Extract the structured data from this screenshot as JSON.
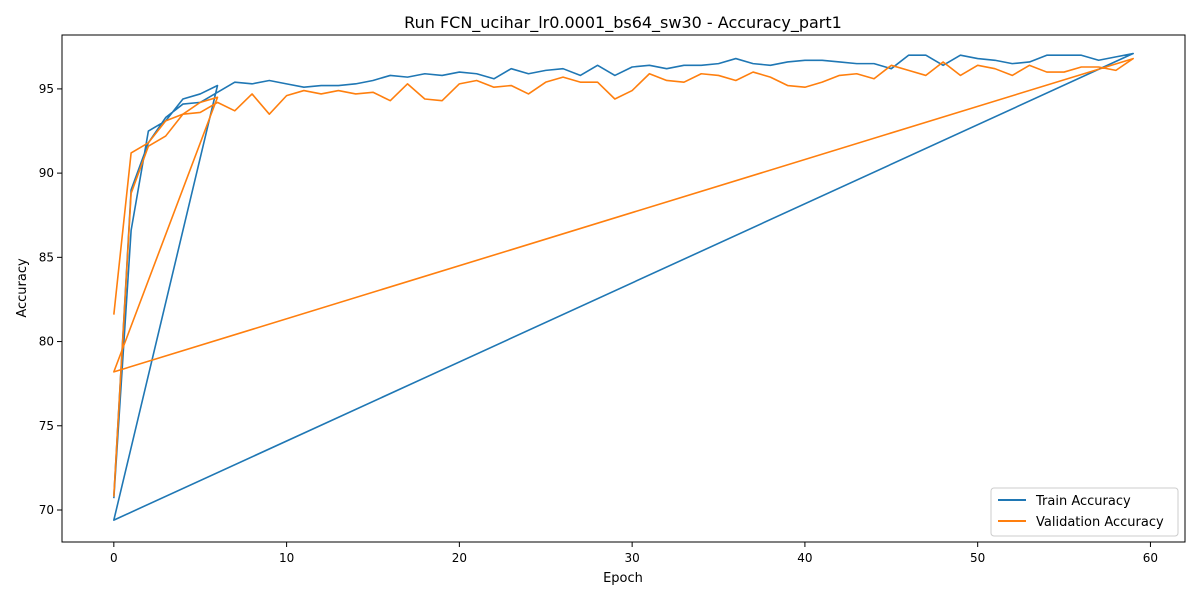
{
  "chart_data": {
    "type": "line",
    "title": "Run FCN_ucihar_lr0.0001_bs64_sw30 - Accuracy_part1",
    "xlabel": "Epoch",
    "ylabel": "Accuracy",
    "xlim": [
      -3,
      62
    ],
    "ylim": [
      68.1,
      98.2
    ],
    "xticks": [
      0,
      10,
      20,
      30,
      40,
      50,
      60
    ],
    "yticks": [
      70,
      75,
      80,
      85,
      90,
      95
    ],
    "grid": false,
    "legend_position": "lower-right",
    "series": [
      {
        "name": "Train Accuracy",
        "color": "#1f77b4",
        "points": [
          [
            0,
            70.7
          ],
          [
            1,
            86.6
          ],
          [
            2,
            92.5
          ],
          [
            3,
            93.1
          ],
          [
            4,
            94.4
          ],
          [
            5,
            94.7
          ],
          [
            6,
            95.2
          ],
          [
            0,
            69.4
          ],
          [
            59,
            97.1
          ],
          [
            58,
            96.9
          ],
          [
            57,
            96.7
          ],
          [
            56,
            97.0
          ],
          [
            55,
            97.0
          ],
          [
            54,
            97.0
          ],
          [
            53,
            96.6
          ],
          [
            52,
            96.5
          ],
          [
            51,
            96.7
          ],
          [
            50,
            96.8
          ],
          [
            49,
            97.0
          ],
          [
            48,
            96.4
          ],
          [
            47,
            97.0
          ],
          [
            46,
            97.0
          ],
          [
            45,
            96.2
          ],
          [
            44,
            96.5
          ],
          [
            43,
            96.5
          ],
          [
            42,
            96.6
          ],
          [
            41,
            96.7
          ],
          [
            40,
            96.7
          ],
          [
            39,
            96.6
          ],
          [
            38,
            96.4
          ],
          [
            37,
            96.5
          ],
          [
            36,
            96.8
          ],
          [
            35,
            96.5
          ],
          [
            34,
            96.4
          ],
          [
            33,
            96.4
          ],
          [
            32,
            96.2
          ],
          [
            31,
            96.4
          ],
          [
            30,
            96.3
          ],
          [
            29,
            95.8
          ],
          [
            28,
            96.4
          ],
          [
            27,
            95.8
          ],
          [
            26,
            96.2
          ],
          [
            25,
            96.1
          ],
          [
            24,
            95.9
          ],
          [
            23,
            96.2
          ],
          [
            22,
            95.6
          ],
          [
            21,
            95.9
          ],
          [
            20,
            96.0
          ],
          [
            19,
            95.8
          ],
          [
            18,
            95.9
          ],
          [
            17,
            95.7
          ],
          [
            16,
            95.8
          ],
          [
            15,
            95.5
          ],
          [
            14,
            95.3
          ],
          [
            13,
            95.2
          ],
          [
            12,
            95.2
          ],
          [
            11,
            95.1
          ],
          [
            10,
            95.3
          ],
          [
            9,
            95.5
          ],
          [
            8,
            95.3
          ],
          [
            7,
            95.4
          ],
          [
            6,
            94.8
          ],
          [
            5,
            94.2
          ],
          [
            4,
            94.1
          ],
          [
            3,
            93.3
          ],
          [
            2,
            91.8
          ],
          [
            1,
            89.0
          ],
          [
            0,
            70.8
          ]
        ]
      },
      {
        "name": "Validation Accuracy",
        "color": "#ff7f0e",
        "points": [
          [
            0,
            81.6
          ],
          [
            1,
            91.2
          ],
          [
            2,
            91.8
          ],
          [
            3,
            93.1
          ],
          [
            4,
            93.5
          ],
          [
            5,
            94.2
          ],
          [
            6,
            94.5
          ],
          [
            0,
            78.2
          ],
          [
            59,
            96.8
          ],
          [
            58,
            96.1
          ],
          [
            57,
            96.3
          ],
          [
            56,
            96.3
          ],
          [
            55,
            96.0
          ],
          [
            54,
            96.0
          ],
          [
            53,
            96.4
          ],
          [
            52,
            95.8
          ],
          [
            51,
            96.2
          ],
          [
            50,
            96.4
          ],
          [
            49,
            95.8
          ],
          [
            48,
            96.6
          ],
          [
            47,
            95.8
          ],
          [
            46,
            96.1
          ],
          [
            45,
            96.4
          ],
          [
            44,
            95.6
          ],
          [
            43,
            95.9
          ],
          [
            42,
            95.8
          ],
          [
            41,
            95.4
          ],
          [
            40,
            95.1
          ],
          [
            39,
            95.2
          ],
          [
            38,
            95.7
          ],
          [
            37,
            96.0
          ],
          [
            36,
            95.5
          ],
          [
            35,
            95.8
          ],
          [
            34,
            95.9
          ],
          [
            33,
            95.4
          ],
          [
            32,
            95.5
          ],
          [
            31,
            95.9
          ],
          [
            30,
            94.9
          ],
          [
            29,
            94.4
          ],
          [
            28,
            95.4
          ],
          [
            27,
            95.4
          ],
          [
            26,
            95.7
          ],
          [
            25,
            95.4
          ],
          [
            24,
            94.7
          ],
          [
            23,
            95.2
          ],
          [
            22,
            95.1
          ],
          [
            21,
            95.5
          ],
          [
            20,
            95.3
          ],
          [
            19,
            94.3
          ],
          [
            18,
            94.4
          ],
          [
            17,
            95.3
          ],
          [
            16,
            94.3
          ],
          [
            15,
            94.8
          ],
          [
            14,
            94.7
          ],
          [
            13,
            94.9
          ],
          [
            12,
            94.7
          ],
          [
            11,
            94.9
          ],
          [
            10,
            94.6
          ],
          [
            9,
            93.5
          ],
          [
            8,
            94.7
          ],
          [
            7,
            93.7
          ],
          [
            6,
            94.2
          ],
          [
            5,
            93.6
          ],
          [
            4,
            93.5
          ],
          [
            3,
            92.2
          ],
          [
            2,
            91.6
          ],
          [
            1,
            88.8
          ],
          [
            0,
            70.8
          ]
        ]
      }
    ]
  }
}
